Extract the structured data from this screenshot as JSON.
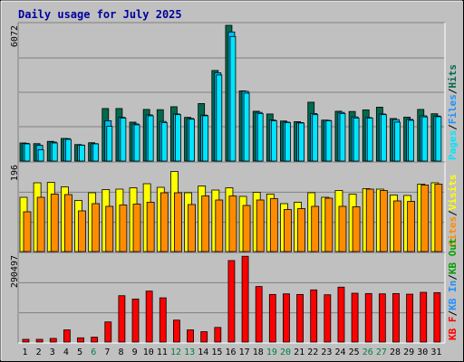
{
  "title": "Daily usage for July 2025",
  "colors": {
    "background": "#C0C0C0",
    "title": "#0000A0",
    "hits": "#006A4E",
    "files": "#00BFFF",
    "pages": "#00E5FF",
    "visits": "#FFFF00",
    "sites": "#FF8C00",
    "kb_in": "#1E90FF",
    "kb_out": "#00A000",
    "kb_f": "#FF0000",
    "weekend_day": "#008040",
    "weekday": "#000000"
  },
  "chart_data": [
    {
      "type": "bar",
      "panel": "hits-files-pages",
      "y_max_label": "6072",
      "legend": [
        "Pages",
        "Files",
        "Hits"
      ],
      "grid": true,
      "categories": [
        "1",
        "2",
        "3",
        "4",
        "5",
        "6",
        "7",
        "8",
        "9",
        "10",
        "11",
        "12",
        "13",
        "14",
        "15",
        "16",
        "17",
        "18",
        "19",
        "20",
        "21",
        "22",
        "23",
        "24",
        "25",
        "26",
        "27",
        "28",
        "29",
        "30",
        "31"
      ],
      "weekend_days": [
        "6",
        "12",
        "13",
        "19",
        "20",
        "26",
        "27"
      ],
      "series": [
        {
          "name": "Hits",
          "values": [
            800,
            770,
            870,
            1000,
            730,
            810,
            2320,
            2320,
            1720,
            2280,
            2270,
            2400,
            1930,
            2540,
            4000,
            6000,
            3100,
            2200,
            2080,
            1770,
            1740,
            2600,
            1810,
            2200,
            2190,
            2260,
            2380,
            1880,
            1940,
            2280,
            2090
          ]
        },
        {
          "name": "Files",
          "values": [
            780,
            700,
            840,
            990,
            710,
            770,
            1780,
            1930,
            1640,
            2040,
            1750,
            2080,
            1880,
            2030,
            3900,
            5700,
            3080,
            2150,
            1810,
            1720,
            1700,
            2100,
            1800,
            2150,
            1950,
            1920,
            2080,
            1830,
            1840,
            2000,
            1990
          ]
        },
        {
          "name": "Pages",
          "values": [
            760,
            500,
            800,
            960,
            700,
            760,
            1540,
            1900,
            1600,
            2000,
            1700,
            2050,
            1850,
            2000,
            3800,
            5500,
            3000,
            2100,
            1780,
            1700,
            1680,
            2050,
            1780,
            2100,
            1900,
            1900,
            2050,
            1720,
            1800,
            1950,
            1960
          ]
        }
      ]
    },
    {
      "type": "bar",
      "panel": "visits-sites",
      "y_max_label": "196",
      "legend": [
        "Sites",
        "Visits"
      ],
      "grid": true,
      "series": [
        {
          "name": "Visits",
          "values": [
            120,
            152,
            153,
            143,
            113,
            130,
            137,
            138,
            141,
            150,
            142,
            177,
            130,
            145,
            136,
            141,
            122,
            131,
            127,
            106,
            109,
            130,
            120,
            135,
            127,
            139,
            138,
            125,
            124,
            149,
            152
          ]
        },
        {
          "name": "Sites",
          "values": [
            88,
            120,
            127,
            126,
            90,
            106,
            100,
            103,
            105,
            109,
            130,
            130,
            104,
            123,
            114,
            123,
            102,
            114,
            117,
            93,
            95,
            100,
            118,
            100,
            99,
            138,
            135,
            112,
            111,
            147,
            149
          ]
        }
      ]
    },
    {
      "type": "bar",
      "panel": "kbytes",
      "y_max_label": "290497",
      "legend": [
        "KB F",
        "KB In",
        "KB Out"
      ],
      "grid": true,
      "series": [
        {
          "name": "KB F",
          "values": [
            9000,
            9000,
            12000,
            40000,
            14000,
            16000,
            66000,
            152000,
            141000,
            167000,
            145000,
            72000,
            40000,
            34000,
            48000,
            267000,
            281000,
            182000,
            156000,
            158000,
            156000,
            171000,
            155000,
            180000,
            160000,
            159000,
            158000,
            159000,
            157000,
            163000,
            162000
          ]
        }
      ]
    }
  ]
}
